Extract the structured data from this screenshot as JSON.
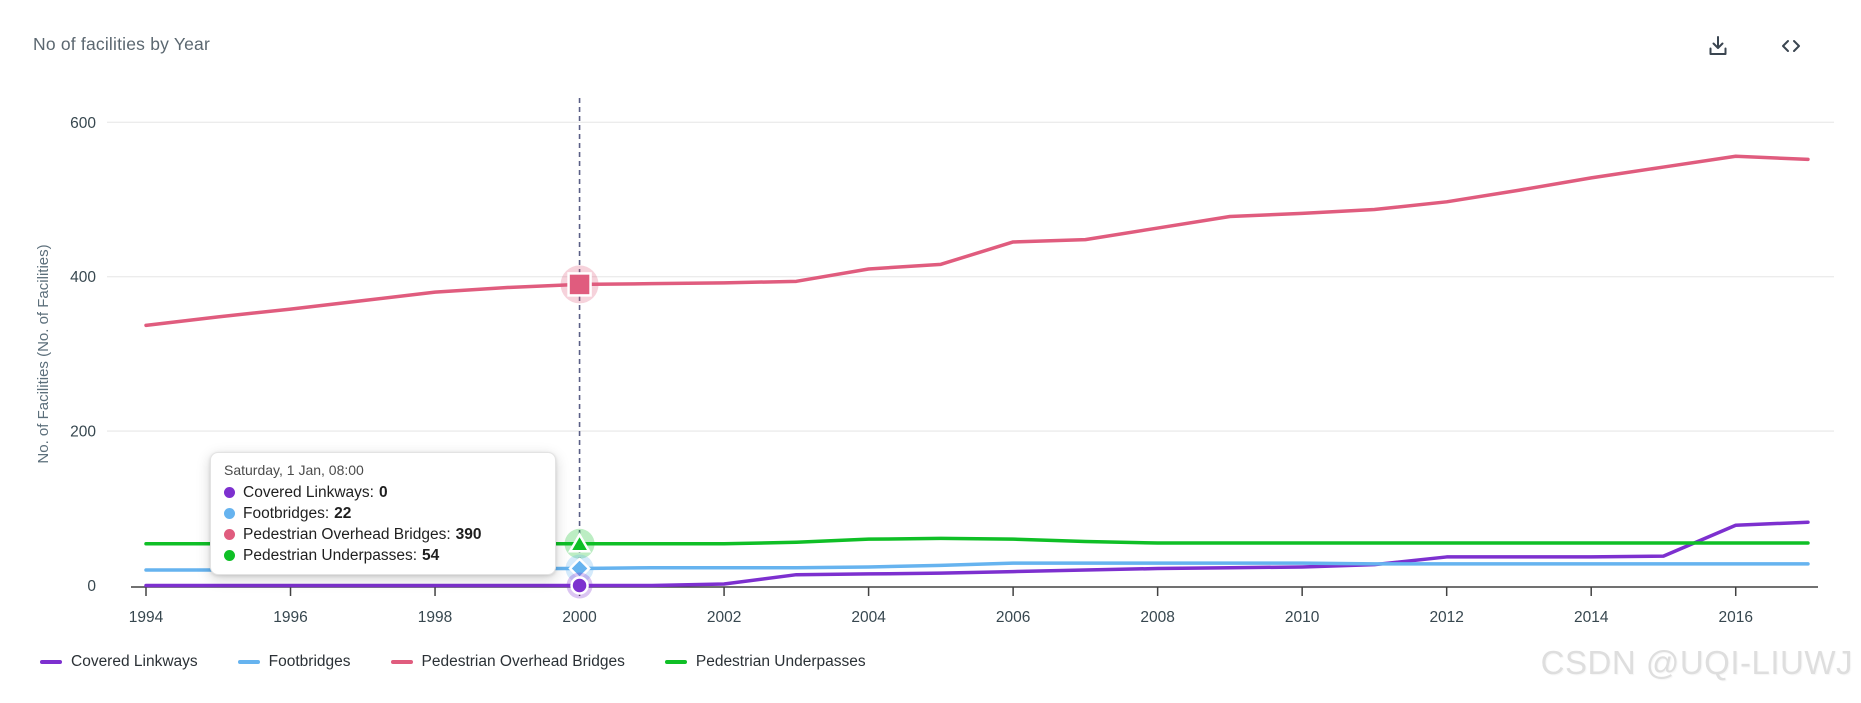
{
  "header": {
    "title": "No of facilities by Year",
    "icons": [
      "download-icon",
      "code-icon"
    ]
  },
  "chart_data": {
    "type": "line",
    "title": "No of facilities by Year",
    "x": [
      1994,
      1995,
      1996,
      1997,
      1998,
      1999,
      2000,
      2001,
      2002,
      2003,
      2004,
      2005,
      2006,
      2007,
      2008,
      2009,
      2010,
      2011,
      2012,
      2013,
      2014,
      2015,
      2016,
      2017
    ],
    "x_tick_labels": [
      "1994",
      "1996",
      "1998",
      "2000",
      "2002",
      "2004",
      "2006",
      "2008",
      "2010",
      "2012",
      "2014",
      "2016"
    ],
    "ylabel": "No. of Facilities (No. of Facilities)",
    "ylim": [
      0,
      600
    ],
    "y_ticks": [
      0,
      200,
      400,
      600
    ],
    "grid": "horizontal",
    "legend_position": "bottom-left",
    "hover_x": 2000,
    "series": [
      {
        "name": "Covered Linkways",
        "color": "#7d30cf",
        "marker": "circle",
        "values": [
          0,
          0,
          0,
          0,
          0,
          0,
          0,
          0,
          2,
          14,
          15,
          16,
          18,
          20,
          22,
          23,
          24,
          27,
          37,
          37,
          37,
          38,
          78,
          82
        ]
      },
      {
        "name": "Footbridges",
        "color": "#66b3ef",
        "marker": "diamond",
        "values": [
          20,
          20,
          21,
          21,
          22,
          22,
          22,
          23,
          23,
          23,
          24,
          26,
          29,
          29,
          29,
          29,
          29,
          28,
          28,
          28,
          28,
          28,
          28,
          28
        ]
      },
      {
        "name": "Pedestrian Overhead Bridges",
        "color": "#e05c7e",
        "marker": "square",
        "values": [
          337,
          348,
          358,
          369,
          380,
          386,
          390,
          391,
          392,
          394,
          410,
          416,
          445,
          448,
          463,
          478,
          482,
          487,
          497,
          512,
          528,
          542,
          556,
          552
        ]
      },
      {
        "name": "Pedestrian Underpasses",
        "color": "#0fbf26",
        "marker": "triangle",
        "values": [
          54,
          54,
          54,
          54,
          54,
          54,
          54,
          54,
          54,
          56,
          60,
          61,
          60,
          57,
          55,
          55,
          55,
          55,
          55,
          55,
          55,
          55,
          55,
          55
        ]
      }
    ]
  },
  "tooltip": {
    "title": "Saturday, 1 Jan, 08:00",
    "rows": [
      {
        "label": "Covered Linkways",
        "value": "0",
        "color": "#7d30cf"
      },
      {
        "label": "Footbridges",
        "value": "22",
        "color": "#66b3ef"
      },
      {
        "label": "Pedestrian Overhead Bridges",
        "value": "390",
        "color": "#e05c7e"
      },
      {
        "label": "Pedestrian Underpasses",
        "value": "54",
        "color": "#0fbf26"
      }
    ]
  },
  "legend": {
    "items": [
      {
        "label": "Covered Linkways",
        "color": "#7d30cf"
      },
      {
        "label": "Footbridges",
        "color": "#66b3ef"
      },
      {
        "label": "Pedestrian Overhead Bridges",
        "color": "#e05c7e"
      },
      {
        "label": "Pedestrian Underpasses",
        "color": "#0fbf26"
      }
    ]
  },
  "colors": {
    "grid": "#ececec",
    "axis": "#424242",
    "tick_label": "#37474f",
    "axis_title": "#5c6f7b",
    "hover_line": "#5a5f86"
  },
  "watermark": "CSDN @UQI-LIUWJ"
}
